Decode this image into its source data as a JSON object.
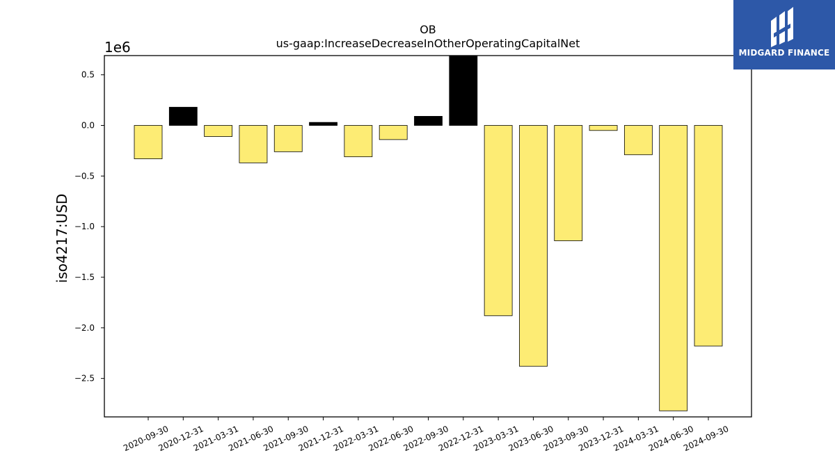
{
  "chart_data": {
    "type": "bar",
    "title": "OB",
    "subtitle": "us-gaap:IncreaseDecreaseInOtherOperatingCapitalNet",
    "ylabel": "iso4217:USD",
    "xlabel": "",
    "multiplier_label": "1e6",
    "categories": [
      "2020-09-30",
      "2020-12-31",
      "2021-03-31",
      "2021-06-30",
      "2021-09-30",
      "2021-12-31",
      "2022-03-31",
      "2022-06-30",
      "2022-09-30",
      "2022-12-31",
      "2023-03-31",
      "2023-06-30",
      "2023-09-30",
      "2023-12-31",
      "2024-03-31",
      "2024-06-30",
      "2024-09-30"
    ],
    "values": [
      -330000,
      180000,
      -110000,
      -370000,
      -260000,
      30000,
      -310000,
      -140000,
      90000,
      690000,
      -1880000,
      -2380000,
      -1140000,
      -50000,
      -290000,
      -2820000,
      -2180000
    ],
    "ylim": [
      -2.88,
      0.69
    ],
    "yticks": [
      0.5,
      0.0,
      -0.5,
      -1.0,
      -1.5,
      -2.0,
      -2.5
    ],
    "ytick_labels": [
      "0.5",
      "0.0",
      "−0.5",
      "−1.0",
      "−1.5",
      "−2.0",
      "−2.5"
    ],
    "colors": {
      "negative": "#fdec74",
      "positive": "#000000",
      "edge": "#000000"
    },
    "grid": false
  },
  "logo": {
    "text": "MIDGARD FINANCE"
  }
}
